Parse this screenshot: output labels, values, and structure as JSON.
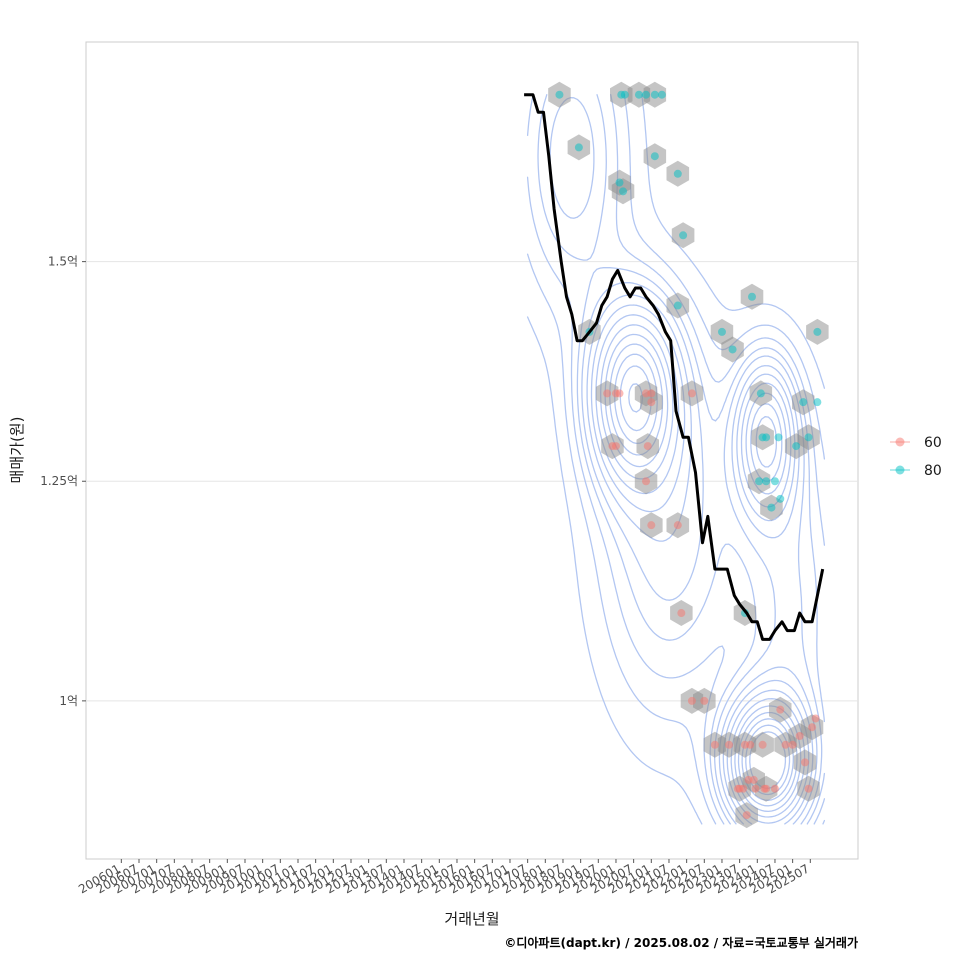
{
  "chart_data": {
    "type": "scatter",
    "xlabel": "거래년월",
    "ylabel": "매매가(원)",
    "caption": "©디아파트(dapt.kr) / 2025.08.02 / 자료=국토교통부 실거래가",
    "x_ticks": [
      "200601",
      "200607",
      "200701",
      "200707",
      "200801",
      "200807",
      "200901",
      "200907",
      "201001",
      "201007",
      "201101",
      "201107",
      "201201",
      "201207",
      "201301",
      "201307",
      "201401",
      "201407",
      "201501",
      "201507",
      "201601",
      "201607",
      "201701",
      "201707",
      "201801",
      "201807",
      "201901",
      "201907",
      "202001",
      "202007",
      "202101",
      "202107",
      "202201",
      "202207",
      "202301",
      "202307",
      "202401",
      "202407",
      "202501",
      "202507"
    ],
    "y_ticks": [
      {
        "value": 1.0,
        "label": "1억"
      },
      {
        "value": 1.25,
        "label": "1.25억"
      },
      {
        "value": 1.5,
        "label": "1.5억"
      }
    ],
    "xlim_index": [
      -2,
      41.7
    ],
    "ylim": [
      0.82,
      1.75
    ],
    "grid": true,
    "legend_position": "right",
    "legend": [
      {
        "name": "60",
        "color": "#F8766D"
      },
      {
        "name": "80",
        "color": "#00BFC4"
      }
    ],
    "trend_line": {
      "color": "#000000",
      "x": [
        22.8,
        23.3,
        23.6,
        23.9,
        24.2,
        24.5,
        24.9,
        25.2,
        25.5,
        25.8,
        26.1,
        26.5,
        26.9,
        27.2,
        27.5,
        27.8,
        28.1,
        28.5,
        28.8,
        29.1,
        29.4,
        29.7,
        30.1,
        30.4,
        30.8,
        31.1,
        31.4,
        31.8,
        32.1,
        32.5,
        32.9,
        33.2,
        33.6,
        33.9,
        34.3,
        34.7,
        35.0,
        35.4,
        35.7,
        36.0,
        36.3,
        36.7,
        37.0,
        37.4,
        37.7,
        38.1,
        38.4,
        38.7,
        39.1,
        39.4,
        39.7
      ],
      "y": [
        1.69,
        1.69,
        1.67,
        1.67,
        1.62,
        1.56,
        1.5,
        1.46,
        1.44,
        1.41,
        1.41,
        1.42,
        1.43,
        1.45,
        1.46,
        1.48,
        1.49,
        1.47,
        1.46,
        1.47,
        1.47,
        1.46,
        1.45,
        1.44,
        1.42,
        1.41,
        1.33,
        1.3,
        1.3,
        1.26,
        1.18,
        1.21,
        1.15,
        1.15,
        1.15,
        1.12,
        1.11,
        1.1,
        1.09,
        1.09,
        1.07,
        1.07,
        1.08,
        1.09,
        1.08,
        1.08,
        1.1,
        1.09,
        1.09,
        1.12,
        1.15
      ]
    },
    "series": [
      {
        "name": "60",
        "color": "#F8766D",
        "points": [
          [
            27.5,
            1.35
          ],
          [
            28.0,
            1.35
          ],
          [
            28.2,
            1.35
          ],
          [
            27.8,
            1.29
          ],
          [
            28.0,
            1.29
          ],
          [
            29.7,
            1.35
          ],
          [
            30.0,
            1.34
          ],
          [
            30.0,
            1.35
          ],
          [
            29.8,
            1.29
          ],
          [
            29.7,
            1.25
          ],
          [
            30.0,
            1.2
          ],
          [
            31.5,
            1.2
          ],
          [
            31.7,
            1.1
          ],
          [
            32.3,
            1.35
          ],
          [
            32.3,
            1.0
          ],
          [
            33.0,
            1.0
          ],
          [
            33.6,
            0.95
          ],
          [
            34.4,
            0.95
          ],
          [
            35.3,
            0.95
          ],
          [
            35.6,
            0.95
          ],
          [
            35.8,
            0.91
          ],
          [
            36.3,
            0.95
          ],
          [
            36.5,
            0.9
          ],
          [
            35.0,
            0.9
          ],
          [
            35.2,
            0.9
          ],
          [
            35.4,
            0.87
          ],
          [
            34.9,
            0.9
          ],
          [
            35.5,
            0.91
          ],
          [
            35.9,
            0.9
          ],
          [
            36.4,
            0.9
          ],
          [
            37.0,
            0.9
          ],
          [
            37.3,
            0.99
          ],
          [
            37.6,
            0.95
          ],
          [
            38.0,
            0.95
          ],
          [
            38.4,
            0.96
          ],
          [
            38.7,
            0.93
          ],
          [
            39.1,
            0.97
          ],
          [
            39.3,
            0.98
          ],
          [
            38.9,
            0.9
          ]
        ]
      },
      {
        "name": "80",
        "color": "#00BFC4",
        "points": [
          [
            24.8,
            1.69
          ],
          [
            28.3,
            1.69
          ],
          [
            28.5,
            1.69
          ],
          [
            29.3,
            1.69
          ],
          [
            29.7,
            1.69
          ],
          [
            30.2,
            1.69
          ],
          [
            30.6,
            1.69
          ],
          [
            30.2,
            1.62
          ],
          [
            25.9,
            1.63
          ],
          [
            28.2,
            1.59
          ],
          [
            28.4,
            1.58
          ],
          [
            31.5,
            1.6
          ],
          [
            31.8,
            1.53
          ],
          [
            31.5,
            1.45
          ],
          [
            26.5,
            1.42
          ],
          [
            34.0,
            1.42
          ],
          [
            34.6,
            1.4
          ],
          [
            35.7,
            1.46
          ],
          [
            36.2,
            1.35
          ],
          [
            36.3,
            1.3
          ],
          [
            36.5,
            1.3
          ],
          [
            37.2,
            1.3
          ],
          [
            38.2,
            1.29
          ],
          [
            38.6,
            1.34
          ],
          [
            38.9,
            1.3
          ],
          [
            39.4,
            1.34
          ],
          [
            39.4,
            1.42
          ],
          [
            36.1,
            1.25
          ],
          [
            36.5,
            1.25
          ],
          [
            36.8,
            1.22
          ],
          [
            37.0,
            1.25
          ],
          [
            37.3,
            1.23
          ],
          [
            35.3,
            1.1
          ]
        ]
      }
    ]
  }
}
